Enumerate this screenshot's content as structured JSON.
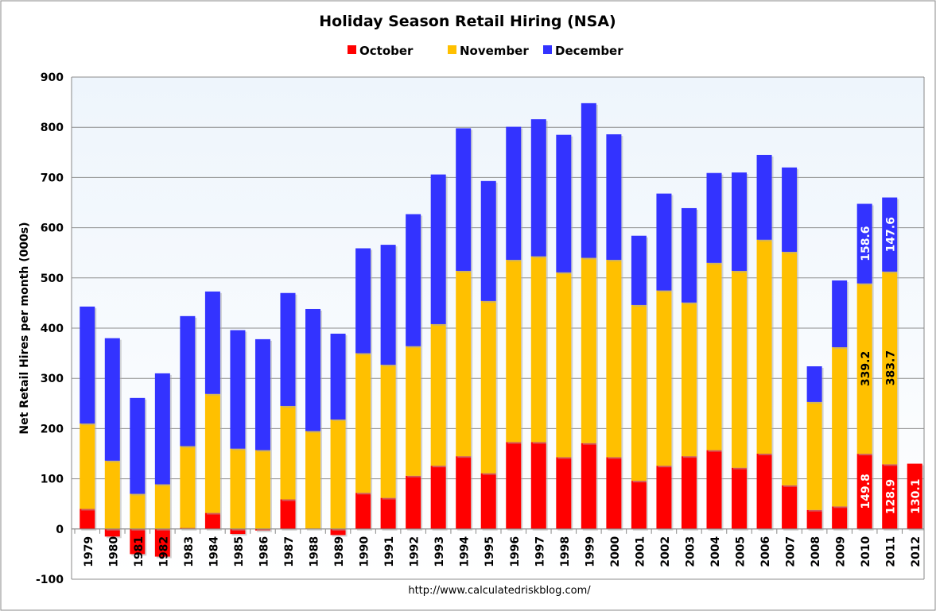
{
  "chart_data": {
    "type": "bar",
    "stacked": true,
    "title": "Holiday Season Retail Hiring (NSA)",
    "xlabel": "",
    "ylabel": "Net Retail Hires per month (000s)",
    "ylim": [
      -100,
      900
    ],
    "yticks": [
      -100,
      0,
      100,
      200,
      300,
      400,
      500,
      600,
      700,
      800,
      900
    ],
    "grid": true,
    "legend_position": "top",
    "source_note": "http://www.calculatedriskblog.com/",
    "categories": [
      "1979",
      "1980",
      "1981",
      "1982",
      "1983",
      "1984",
      "1985",
      "1986",
      "1987",
      "1988",
      "1989",
      "1990",
      "1991",
      "1992",
      "1993",
      "1994",
      "1995",
      "1996",
      "1997",
      "1998",
      "1999",
      "2000",
      "2001",
      "2002",
      "2003",
      "2004",
      "2005",
      "2006",
      "2007",
      "2008",
      "2009",
      "2010",
      "2011",
      "2012"
    ],
    "series": [
      {
        "name": "October",
        "color": "#ff0000",
        "values": [
          40,
          -15,
          -50,
          -55,
          2,
          32,
          -10,
          -3,
          59,
          1,
          -12,
          72,
          62,
          106,
          126,
          145,
          111,
          173,
          173,
          143,
          171,
          143,
          96,
          126,
          145,
          157,
          122,
          150,
          87,
          38,
          45,
          149.8,
          128.9,
          130.1
        ]
      },
      {
        "name": "November",
        "color": "#ffc000",
        "values": [
          170,
          136,
          70,
          89,
          163,
          237,
          160,
          157,
          186,
          194,
          218,
          278,
          265,
          258,
          282,
          369,
          343,
          363,
          370,
          368,
          369,
          393,
          350,
          349,
          306,
          373,
          392,
          426,
          465,
          215,
          317,
          339.2,
          383.7,
          null
        ]
      },
      {
        "name": "December",
        "color": "#3333ff",
        "values": [
          233,
          244,
          191,
          221,
          259,
          204,
          236,
          221,
          225,
          243,
          171,
          209,
          239,
          263,
          298,
          284,
          239,
          265,
          273,
          274,
          308,
          250,
          138,
          193,
          188,
          179,
          196,
          169,
          168,
          71,
          133,
          158.6,
          147.6,
          null
        ]
      }
    ],
    "data_labels": [
      {
        "category": "2010",
        "series": "October",
        "text": "149.8"
      },
      {
        "category": "2010",
        "series": "November",
        "text": "339.2"
      },
      {
        "category": "2010",
        "series": "December",
        "text": "158.6"
      },
      {
        "category": "2011",
        "series": "October",
        "text": "128.9"
      },
      {
        "category": "2011",
        "series": "November",
        "text": "383.7"
      },
      {
        "category": "2011",
        "series": "December",
        "text": "147.6"
      },
      {
        "category": "2012",
        "series": "October",
        "text": "130.1"
      }
    ]
  }
}
